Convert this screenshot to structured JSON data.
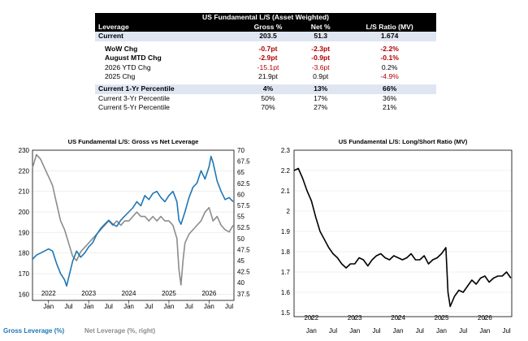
{
  "table": {
    "title": "US Fundamental L/S (Asset Weighted)",
    "headers": [
      "Leverage",
      "Gross %",
      "Net %",
      "L/S Ratio (MV)"
    ],
    "rows": [
      {
        "label": "Current",
        "gross": "203.5",
        "net": "51.3",
        "ratio": "1.674"
      },
      {
        "label": "WoW Chg",
        "gross": "-0.7pt",
        "net": "-2.3pt",
        "ratio": "-2.2%"
      },
      {
        "label": "August MTD Chg",
        "gross": "-2.9pt",
        "net": "-0.9pt",
        "ratio": "-0.1%"
      },
      {
        "label": "2026 YTD Chg",
        "gross": "-15.1pt",
        "net": "-3.6pt",
        "ratio": "0.2%"
      },
      {
        "label": "2025 Chg",
        "gross": "21.9pt",
        "net": "0.9pt",
        "ratio": "-4.9%"
      },
      {
        "label": "Current 1-Yr Percentile",
        "gross": "4%",
        "net": "13%",
        "ratio": "66%"
      },
      {
        "label": "Current 3-Yr Percentile",
        "gross": "50%",
        "net": "17%",
        "ratio": "36%"
      },
      {
        "label": "Current 5-Yr Percentile",
        "gross": "70%",
        "net": "27%",
        "ratio": "21%"
      }
    ],
    "colors": {
      "negative": "#b00000",
      "highlight": "#dfe6f2",
      "header_bg": "#000000"
    }
  },
  "chart_data": [
    {
      "type": "line",
      "title": "US Fundamental L/S: Gross vs Net Leverage",
      "x_tick_labels": [
        "Jan",
        "Jul",
        "Jan",
        "Jul",
        "Jan",
        "Jul",
        "Jan",
        "Jul",
        "Jan",
        "Jul"
      ],
      "year_labels": [
        "2022",
        "2023",
        "2024",
        "2025",
        "2026"
      ],
      "y_left": {
        "ticks": [
          "160",
          "170",
          "180",
          "190",
          "200",
          "210",
          "220",
          "230"
        ],
        "range": [
          157,
          230
        ]
      },
      "y_right": {
        "ticks": [
          "37.5",
          "40",
          "42.5",
          "45",
          "47.5",
          "50",
          "52.5",
          "55",
          "57.5",
          "60",
          "62.5",
          "65",
          "67.5",
          "70"
        ],
        "range": [
          36,
          70
        ]
      },
      "x_range": [
        2021.6,
        2026.62
      ],
      "series": [
        {
          "name": "Gross Leverage (%)",
          "axis": "left",
          "color": "#1f77b4",
          "x": [
            2021.6,
            2021.7,
            2021.8,
            2021.9,
            2022.0,
            2022.1,
            2022.2,
            2022.3,
            2022.4,
            2022.45,
            2022.5,
            2022.6,
            2022.7,
            2022.8,
            2022.9,
            2023.0,
            2023.1,
            2023.2,
            2023.3,
            2023.4,
            2023.5,
            2023.6,
            2023.7,
            2023.8,
            2023.9,
            2024.0,
            2024.1,
            2024.2,
            2024.3,
            2024.4,
            2024.5,
            2024.6,
            2024.7,
            2024.8,
            2024.9,
            2025.0,
            2025.1,
            2025.2,
            2025.25,
            2025.3,
            2025.4,
            2025.5,
            2025.6,
            2025.7,
            2025.8,
            2025.9,
            2026.0,
            2026.05,
            2026.1,
            2026.2,
            2026.3,
            2026.4,
            2026.5,
            2026.6
          ],
          "values": [
            177,
            179,
            180,
            181,
            182,
            181,
            175,
            170,
            167,
            164,
            168,
            176,
            181,
            178,
            180,
            183,
            185,
            189,
            192,
            194,
            196,
            194,
            193,
            196,
            198,
            200,
            202,
            205,
            203,
            208,
            206,
            209,
            210,
            207,
            205,
            208,
            210,
            205,
            196,
            194,
            200,
            207,
            212,
            214,
            220,
            216,
            222,
            227,
            224,
            215,
            210,
            206,
            207,
            205
          ]
        },
        {
          "name": "Net Leverage (%, right)",
          "axis": "right",
          "color": "#8c8c8c",
          "x": [
            2021.6,
            2021.7,
            2021.8,
            2021.9,
            2022.0,
            2022.1,
            2022.2,
            2022.3,
            2022.4,
            2022.5,
            2022.6,
            2022.7,
            2022.8,
            2022.9,
            2023.0,
            2023.1,
            2023.2,
            2023.3,
            2023.4,
            2023.5,
            2023.6,
            2023.7,
            2023.8,
            2023.9,
            2024.0,
            2024.1,
            2024.2,
            2024.3,
            2024.4,
            2024.5,
            2024.6,
            2024.7,
            2024.8,
            2024.9,
            2025.0,
            2025.1,
            2025.2,
            2025.25,
            2025.3,
            2025.35,
            2025.4,
            2025.5,
            2025.6,
            2025.7,
            2025.8,
            2025.9,
            2026.0,
            2026.1,
            2026.2,
            2026.3,
            2026.4,
            2026.5,
            2026.6
          ],
          "values": [
            66,
            69,
            68,
            66,
            64,
            62,
            58,
            54,
            52,
            49,
            46,
            45,
            47,
            48,
            49,
            50,
            51,
            52,
            53,
            54,
            53,
            54,
            53,
            54,
            54,
            55,
            56,
            55,
            55,
            54,
            55,
            54,
            55,
            54,
            54,
            53,
            50,
            43,
            39.5,
            45,
            49,
            51,
            52,
            53,
            54,
            56,
            57,
            54,
            55,
            53,
            52,
            51.5,
            53
          ]
        }
      ]
    },
    {
      "type": "line",
      "title": "US Fundamental L/S: Long/Short Ratio (MV)",
      "x_tick_labels": [
        "Jan",
        "Jul",
        "Jan",
        "Jul",
        "Jan",
        "Jul",
        "Jan",
        "Jul",
        "Jan",
        "Jul"
      ],
      "year_labels": [
        "2022",
        "2023",
        "2024",
        "2025",
        "2026"
      ],
      "y": {
        "ticks": [
          "1.5",
          "1.6",
          "1.7",
          "1.8",
          "1.9",
          "2",
          "2.1",
          "2.2",
          "2.3"
        ],
        "range": [
          1.48,
          2.3
        ]
      },
      "x_range": [
        2021.6,
        2026.62
      ],
      "series": [
        {
          "color": "#000000",
          "x": [
            2021.6,
            2021.7,
            2021.8,
            2021.9,
            2022.0,
            2022.1,
            2022.2,
            2022.3,
            2022.4,
            2022.5,
            2022.6,
            2022.7,
            2022.8,
            2022.9,
            2023.0,
            2023.1,
            2023.2,
            2023.3,
            2023.4,
            2023.5,
            2023.6,
            2023.7,
            2023.8,
            2023.9,
            2024.0,
            2024.1,
            2024.2,
            2024.3,
            2024.4,
            2024.5,
            2024.6,
            2024.7,
            2024.8,
            2024.9,
            2025.0,
            2025.1,
            2025.15,
            2025.2,
            2025.3,
            2025.4,
            2025.5,
            2025.6,
            2025.7,
            2025.8,
            2025.9,
            2026.0,
            2026.1,
            2026.2,
            2026.3,
            2026.4,
            2026.5,
            2026.6
          ],
          "values": [
            2.2,
            2.21,
            2.16,
            2.1,
            2.05,
            1.97,
            1.9,
            1.86,
            1.82,
            1.79,
            1.77,
            1.74,
            1.72,
            1.74,
            1.74,
            1.77,
            1.76,
            1.73,
            1.76,
            1.78,
            1.79,
            1.77,
            1.76,
            1.78,
            1.77,
            1.76,
            1.77,
            1.79,
            1.76,
            1.76,
            1.78,
            1.74,
            1.76,
            1.77,
            1.79,
            1.82,
            1.6,
            1.53,
            1.58,
            1.61,
            1.6,
            1.63,
            1.66,
            1.64,
            1.67,
            1.68,
            1.65,
            1.67,
            1.68,
            1.68,
            1.7,
            1.67
          ]
        }
      ]
    }
  ]
}
